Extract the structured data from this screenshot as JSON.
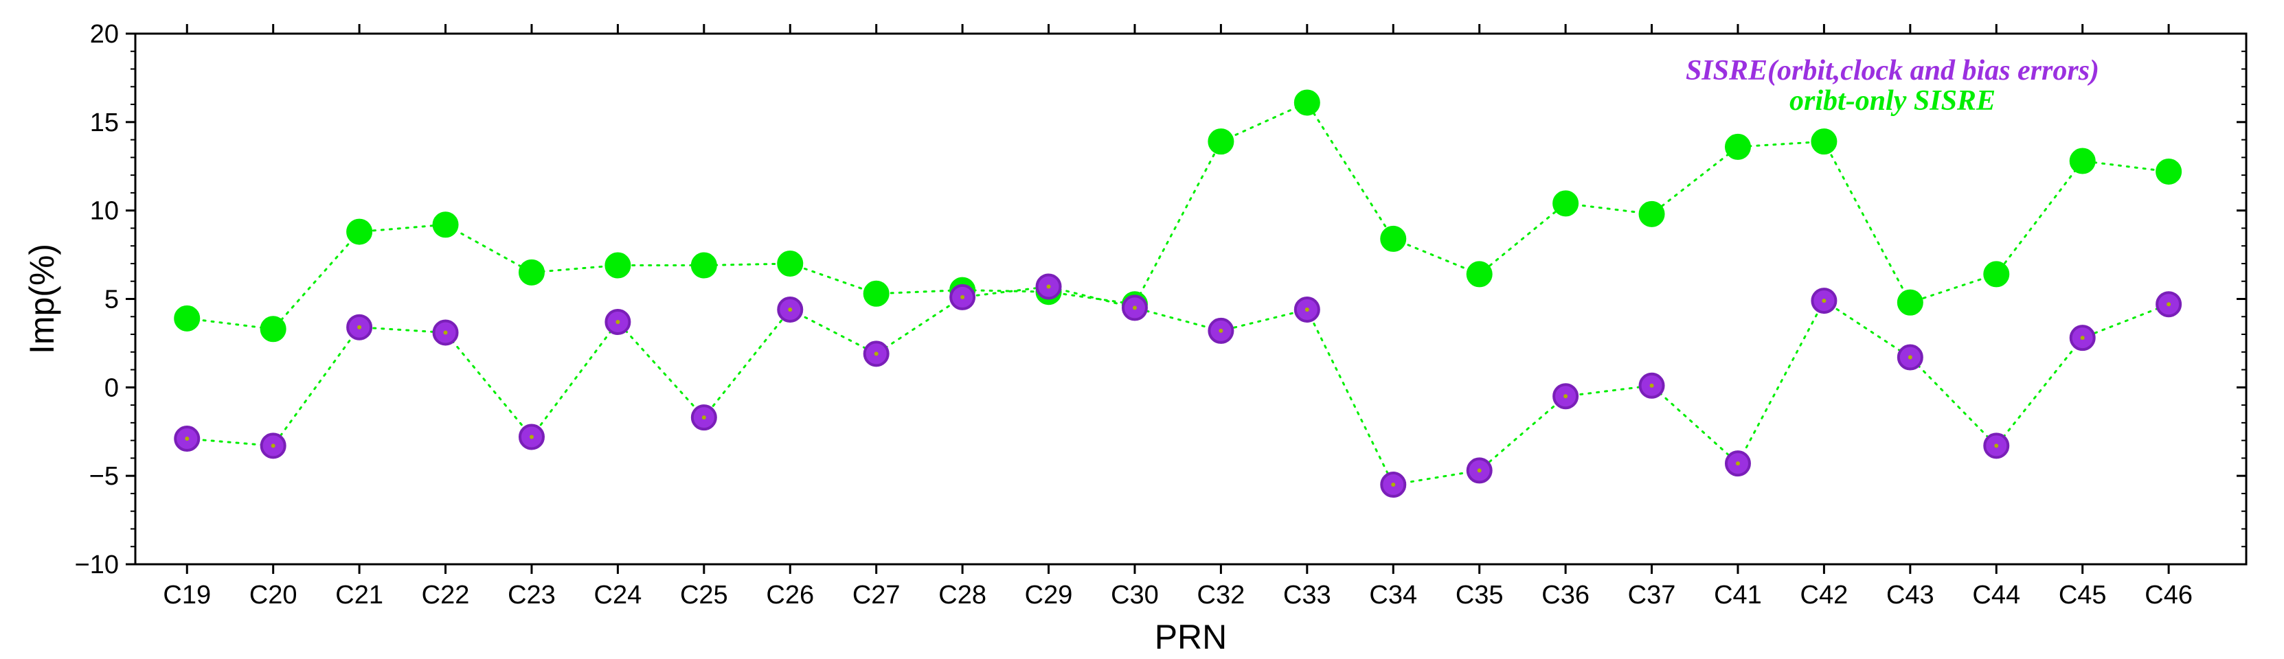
{
  "chart_data": {
    "type": "line",
    "xlabel": "PRN",
    "ylabel": "Imp(%)",
    "ylim": [
      -10,
      20
    ],
    "yticks": [
      -10,
      -5,
      0,
      5,
      10,
      15,
      20
    ],
    "ytick_labels": [
      "−10",
      "−5",
      "0",
      "5",
      "10",
      "15",
      "20"
    ],
    "grid": false,
    "legend_position": "top-right",
    "categories": [
      "C19",
      "C20",
      "C21",
      "C22",
      "C23",
      "C24",
      "C25",
      "C26",
      "C27",
      "C28",
      "C29",
      "C30",
      "C32",
      "C33",
      "C34",
      "C35",
      "C36",
      "C37",
      "C41",
      "C42",
      "C43",
      "C44",
      "C45",
      "C46"
    ],
    "series": [
      {
        "name": "SISRE(orbit,clock and bias errors)",
        "color": "#9b30e0",
        "edge_color": "#7a1fb8",
        "center_color": "#b0b000",
        "values": [
          -2.9,
          -3.3,
          3.4,
          3.1,
          -2.8,
          3.7,
          -1.7,
          4.4,
          1.9,
          5.1,
          5.7,
          4.5,
          3.2,
          4.4,
          -5.5,
          -4.7,
          -0.5,
          0.1,
          -4.3,
          4.9,
          1.7,
          -3.3,
          2.8,
          4.7
        ]
      },
      {
        "name": "oribt-only SISRE",
        "color": "#00ee00",
        "edge_color": "#00ee00",
        "values": [
          3.9,
          3.3,
          8.8,
          9.2,
          6.5,
          6.9,
          6.9,
          7.0,
          5.3,
          5.5,
          5.4,
          4.7,
          13.9,
          16.1,
          8.4,
          6.4,
          10.4,
          9.8,
          13.6,
          13.9,
          4.8,
          6.4,
          12.8,
          12.2
        ]
      }
    ],
    "line_color": "#00ee00",
    "line_style": "dotted"
  }
}
